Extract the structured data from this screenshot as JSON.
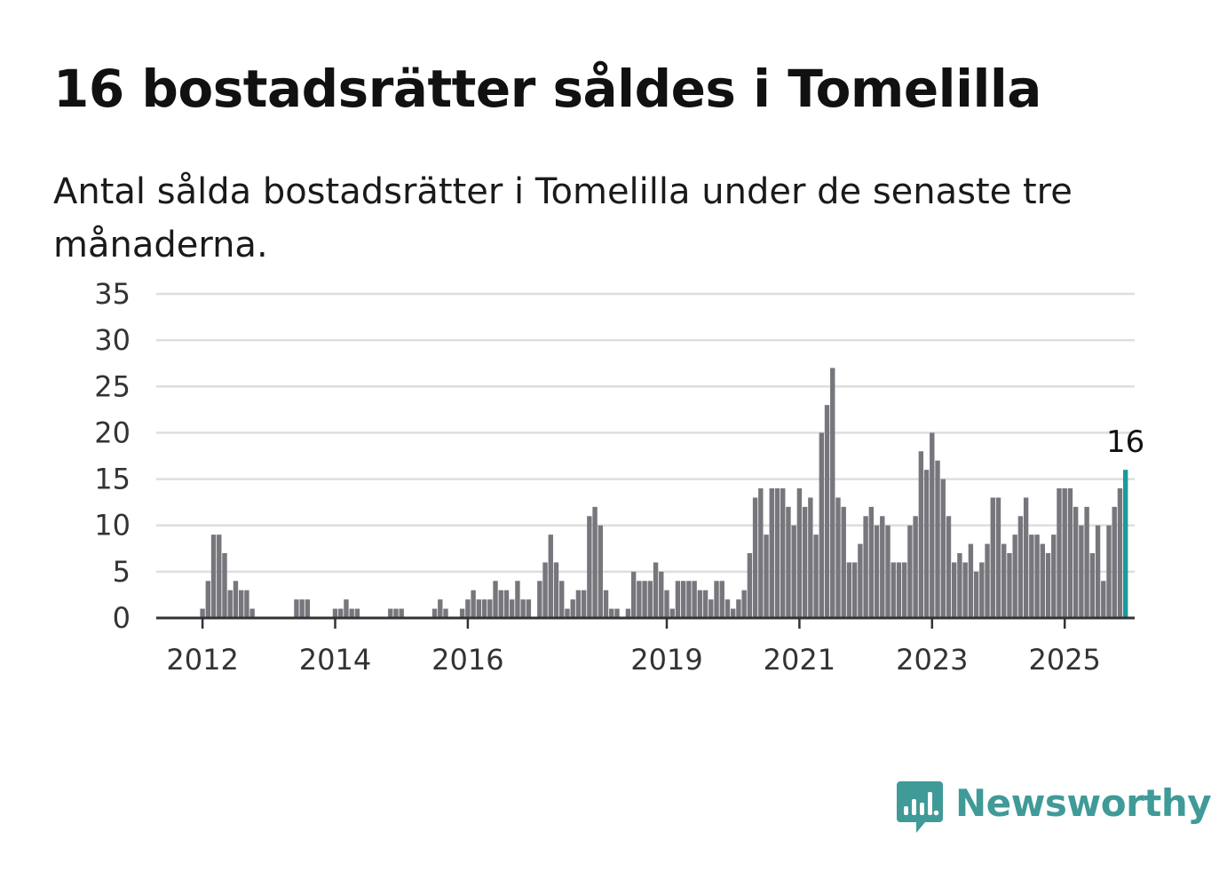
{
  "title": "16 bostadsrätter såldes i Tomelilla",
  "subtitle": "Antal sålda bostadsrätter i Tomelilla under de senaste tre månaderna.",
  "logo": {
    "text": "Newsworthy",
    "icon": "newsworthy-chart-bubble-icon",
    "color": "#3f9a98"
  },
  "chart_data": {
    "type": "bar",
    "title": "",
    "xlabel": "",
    "ylabel": "",
    "ylim": [
      0,
      35
    ],
    "y_ticks": [
      0,
      5,
      10,
      15,
      20,
      25,
      30,
      35
    ],
    "x_tick_labels": [
      {
        "label": "2012",
        "date": "2012-01"
      },
      {
        "label": "2014",
        "date": "2014-01"
      },
      {
        "label": "2016",
        "date": "2016-01"
      },
      {
        "label": "2019",
        "date": "2019-01"
      },
      {
        "label": "2021",
        "date": "2021-01"
      },
      {
        "label": "2023",
        "date": "2023-01"
      },
      {
        "label": "2025",
        "date": "2025-01"
      }
    ],
    "grid": true,
    "bar_color": "#77767c",
    "highlight_color": "#1a9b9b",
    "highlight_label": "16",
    "start_month": "2011-09",
    "values": [
      0,
      0,
      0,
      0,
      1,
      4,
      9,
      9,
      7,
      3,
      4,
      3,
      3,
      1,
      0,
      0,
      0,
      0,
      0,
      0,
      0,
      2,
      2,
      2,
      0,
      0,
      0,
      0,
      1,
      1,
      2,
      1,
      1,
      0,
      0,
      0,
      0,
      0,
      1,
      1,
      1,
      0,
      0,
      0,
      0,
      0,
      1,
      2,
      1,
      0,
      0,
      1,
      2,
      3,
      2,
      2,
      2,
      4,
      3,
      3,
      2,
      4,
      2,
      2,
      0,
      4,
      6,
      9,
      6,
      4,
      1,
      2,
      3,
      3,
      11,
      12,
      10,
      3,
      1,
      1,
      0,
      1,
      5,
      4,
      4,
      4,
      6,
      5,
      3,
      1,
      4,
      4,
      4,
      4,
      3,
      3,
      2,
      4,
      4,
      2,
      1,
      2,
      3,
      7,
      13,
      14,
      9,
      14,
      14,
      14,
      12,
      10,
      14,
      12,
      13,
      9,
      20,
      23,
      27,
      13,
      12,
      6,
      6,
      8,
      11,
      12,
      10,
      11,
      10,
      6,
      6,
      6,
      10,
      11,
      18,
      16,
      20,
      17,
      15,
      11,
      6,
      7,
      6,
      8,
      5,
      6,
      8,
      13,
      13,
      8,
      7,
      9,
      11,
      13,
      9,
      9,
      8,
      7,
      9,
      14,
      14,
      14,
      12,
      10,
      12,
      7,
      10,
      4,
      10,
      12,
      14,
      16
    ]
  }
}
